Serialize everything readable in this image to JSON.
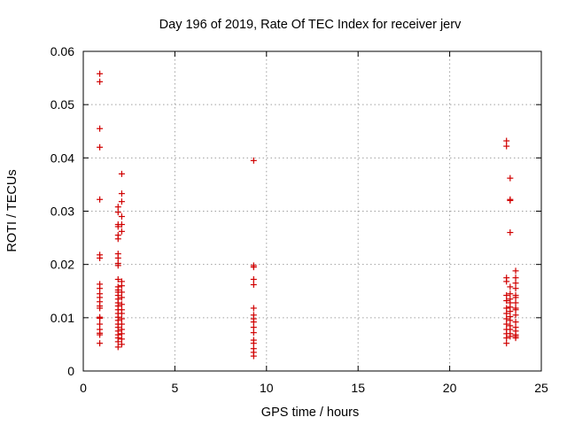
{
  "chart_data": {
    "type": "scatter",
    "title": "Day 196 of 2019, Rate Of TEC Index for receiver jerv",
    "xlabel": "GPS time / hours",
    "ylabel": "ROTI / TECUs",
    "xlim": [
      0,
      25
    ],
    "ylim": [
      0,
      0.06
    ],
    "grid": true,
    "marker": "+",
    "color": "#d00000",
    "x_ticks": [
      "0",
      "5",
      "10",
      "15",
      "20",
      "25"
    ],
    "y_ticks": [
      "0",
      "0.01",
      "0.02",
      "0.03",
      "0.04",
      "0.05",
      "0.06"
    ],
    "series": [
      {
        "name": "ROTI",
        "points": [
          [
            0.9,
            0.0558
          ],
          [
            0.9,
            0.0543
          ],
          [
            0.9,
            0.0455
          ],
          [
            0.9,
            0.042
          ],
          [
            0.9,
            0.0322
          ],
          [
            0.9,
            0.0218
          ],
          [
            0.9,
            0.0212
          ],
          [
            0.9,
            0.0163
          ],
          [
            0.9,
            0.0155
          ],
          [
            0.9,
            0.0145
          ],
          [
            0.9,
            0.0138
          ],
          [
            0.9,
            0.013
          ],
          [
            0.9,
            0.0122
          ],
          [
            0.9,
            0.0118
          ],
          [
            0.9,
            0.0101
          ],
          [
            0.9,
            0.0099
          ],
          [
            0.9,
            0.0088
          ],
          [
            0.9,
            0.0078
          ],
          [
            0.9,
            0.0071
          ],
          [
            0.9,
            0.0068
          ],
          [
            0.9,
            0.0052
          ],
          [
            1.9,
            0.0308
          ],
          [
            1.9,
            0.0298
          ],
          [
            1.9,
            0.0275
          ],
          [
            1.9,
            0.0271
          ],
          [
            1.9,
            0.0255
          ],
          [
            1.9,
            0.0248
          ],
          [
            1.9,
            0.022
          ],
          [
            1.9,
            0.0212
          ],
          [
            1.9,
            0.0202
          ],
          [
            1.9,
            0.0198
          ],
          [
            1.9,
            0.0172
          ],
          [
            1.9,
            0.0158
          ],
          [
            1.9,
            0.0152
          ],
          [
            1.9,
            0.0148
          ],
          [
            1.9,
            0.0142
          ],
          [
            1.9,
            0.0135
          ],
          [
            1.9,
            0.0128
          ],
          [
            1.9,
            0.0122
          ],
          [
            1.9,
            0.0115
          ],
          [
            1.9,
            0.0108
          ],
          [
            1.9,
            0.0101
          ],
          [
            1.9,
            0.0095
          ],
          [
            1.9,
            0.0088
          ],
          [
            1.9,
            0.0082
          ],
          [
            1.9,
            0.0075
          ],
          [
            1.9,
            0.0068
          ],
          [
            1.9,
            0.0062
          ],
          [
            1.9,
            0.0055
          ],
          [
            1.9,
            0.0045
          ],
          [
            2.1,
            0.037
          ],
          [
            2.1,
            0.0333
          ],
          [
            2.1,
            0.0318
          ],
          [
            2.1,
            0.029
          ],
          [
            2.1,
            0.0275
          ],
          [
            2.1,
            0.0262
          ],
          [
            2.1,
            0.0168
          ],
          [
            2.1,
            0.016
          ],
          [
            2.1,
            0.0148
          ],
          [
            2.1,
            0.0138
          ],
          [
            2.1,
            0.0125
          ],
          [
            2.1,
            0.0115
          ],
          [
            2.1,
            0.0108
          ],
          [
            2.1,
            0.0098
          ],
          [
            2.1,
            0.0088
          ],
          [
            2.1,
            0.0078
          ],
          [
            2.1,
            0.007
          ],
          [
            2.1,
            0.006
          ],
          [
            2.1,
            0.005
          ],
          [
            9.3,
            0.0395
          ],
          [
            9.3,
            0.0198
          ],
          [
            9.3,
            0.0195
          ],
          [
            9.3,
            0.0172
          ],
          [
            9.3,
            0.0162
          ],
          [
            9.3,
            0.0118
          ],
          [
            9.3,
            0.0105
          ],
          [
            9.3,
            0.0098
          ],
          [
            9.3,
            0.0092
          ],
          [
            9.3,
            0.0082
          ],
          [
            9.3,
            0.0072
          ],
          [
            9.3,
            0.0058
          ],
          [
            9.3,
            0.0052
          ],
          [
            9.3,
            0.0042
          ],
          [
            9.3,
            0.0035
          ],
          [
            9.3,
            0.0028
          ],
          [
            23.1,
            0.0432
          ],
          [
            23.1,
            0.0422
          ],
          [
            23.1,
            0.0175
          ],
          [
            23.1,
            0.0168
          ],
          [
            23.1,
            0.0142
          ],
          [
            23.1,
            0.0132
          ],
          [
            23.1,
            0.0118
          ],
          [
            23.1,
            0.0108
          ],
          [
            23.1,
            0.0098
          ],
          [
            23.1,
            0.0088
          ],
          [
            23.1,
            0.0078
          ],
          [
            23.1,
            0.007
          ],
          [
            23.1,
            0.0062
          ],
          [
            23.1,
            0.0052
          ],
          [
            23.3,
            0.0362
          ],
          [
            23.3,
            0.0322
          ],
          [
            23.3,
            0.032
          ],
          [
            23.3,
            0.026
          ],
          [
            23.3,
            0.0158
          ],
          [
            23.3,
            0.0145
          ],
          [
            23.3,
            0.0135
          ],
          [
            23.3,
            0.0128
          ],
          [
            23.3,
            0.012
          ],
          [
            23.3,
            0.0112
          ],
          [
            23.3,
            0.0102
          ],
          [
            23.3,
            0.0095
          ],
          [
            23.3,
            0.0085
          ],
          [
            23.3,
            0.0078
          ],
          [
            23.3,
            0.007
          ],
          [
            23.3,
            0.0065
          ],
          [
            23.6,
            0.0188
          ],
          [
            23.6,
            0.0175
          ],
          [
            23.6,
            0.0165
          ],
          [
            23.6,
            0.0155
          ],
          [
            23.6,
            0.0142
          ],
          [
            23.6,
            0.0138
          ],
          [
            23.6,
            0.0128
          ],
          [
            23.6,
            0.0118
          ],
          [
            23.6,
            0.0115
          ],
          [
            23.6,
            0.0105
          ],
          [
            23.6,
            0.0092
          ],
          [
            23.6,
            0.0082
          ],
          [
            23.6,
            0.0075
          ],
          [
            23.6,
            0.0068
          ],
          [
            23.6,
            0.0065
          ],
          [
            23.6,
            0.0062
          ]
        ]
      }
    ]
  }
}
